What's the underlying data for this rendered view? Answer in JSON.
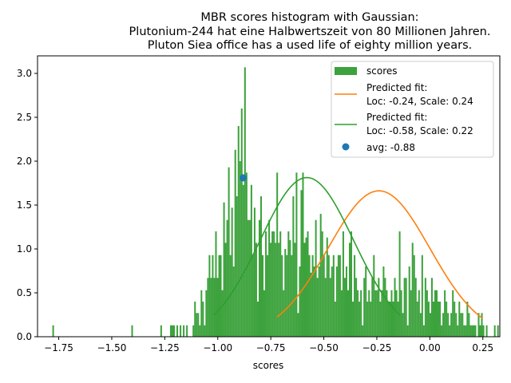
{
  "chart_data": {
    "type": "bar",
    "title_lines": [
      "MBR scores histogram with Gaussian:",
      "Plutonium-244 hat eine Halbwertszeit von 80 Millionen Jahren.",
      "Pluton Siea office has a used life of eighty million years."
    ],
    "xlabel": "scores",
    "ylabel": "",
    "xlim": [
      -1.85,
      0.33
    ],
    "ylim": [
      0,
      3.2
    ],
    "xticks": [
      -1.75,
      -1.5,
      -1.25,
      -1.0,
      -0.75,
      -0.5,
      -0.25,
      0.0,
      0.25
    ],
    "xtick_labels": [
      "−1.75",
      "−1.50",
      "−1.25",
      "−1.00",
      "−0.75",
      "−0.50",
      "−0.25",
      "0.00",
      "0.25"
    ],
    "yticks": [
      0.0,
      0.5,
      1.0,
      1.5,
      2.0,
      2.5,
      3.0
    ],
    "ytick_labels": [
      "0.0",
      "0.5",
      "1.0",
      "1.5",
      "2.0",
      "2.5",
      "3.0"
    ],
    "grid": false,
    "legend_position": "top-right",
    "histogram": {
      "name": "scores",
      "color": "#3ca23c",
      "bin_start": -1.78,
      "bin_width": 0.0076,
      "heights": [
        0.13,
        0,
        0,
        0,
        0,
        0,
        0,
        0,
        0,
        0,
        0,
        0,
        0,
        0,
        0,
        0,
        0,
        0,
        0,
        0,
        0,
        0,
        0,
        0,
        0,
        0,
        0,
        0,
        0,
        0,
        0,
        0,
        0,
        0,
        0,
        0,
        0,
        0,
        0,
        0,
        0,
        0,
        0,
        0,
        0,
        0,
        0,
        0,
        0,
        0.13,
        0,
        0,
        0,
        0,
        0,
        0,
        0,
        0,
        0,
        0,
        0,
        0,
        0,
        0,
        0,
        0,
        0,
        0.13,
        0,
        0,
        0,
        0,
        0,
        0.13,
        0.13,
        0.13,
        0,
        0.13,
        0,
        0.13,
        0,
        0.13,
        0,
        0.13,
        0,
        0,
        0,
        0.13,
        0.4,
        0.27,
        0.27,
        0.13,
        0.53,
        0.4,
        0.13,
        0.53,
        0.67,
        0.93,
        0.67,
        0.93,
        0.67,
        1.2,
        0.67,
        0.93,
        0.93,
        0.53,
        1.53,
        1.07,
        1.33,
        1.93,
        0.93,
        1.47,
        0.8,
        2.13,
        1.6,
        2.4,
        2.0,
        2.6,
        1.73,
        3.07,
        1.87,
        1.33,
        1.33,
        1.73,
        0.93,
        1.47,
        1.07,
        0.4,
        1.33,
        1.6,
        0.93,
        0.53,
        1.2,
        0.93,
        1.33,
        1.07,
        1.2,
        1.2,
        1.07,
        1.87,
        1.07,
        1.2,
        0.93,
        0.53,
        1.0,
        0.93,
        1.2,
        1.1,
        0.93,
        1.6,
        1.07,
        1.87,
        0.27,
        0.8,
        1.67,
        1.87,
        1.07,
        1.13,
        1.2,
        0.93,
        0.73,
        0.93,
        0.8,
        1.33,
        0.67,
        0.8,
        1.4,
        1.2,
        0.93,
        0.67,
        1.13,
        0.93,
        0.67,
        0.8,
        0.93,
        0.4,
        0.8,
        0.93,
        0.93,
        0.53,
        1.2,
        0.67,
        0.8,
        0.53,
        1.07,
        1.2,
        0.4,
        0.93,
        0.67,
        0.53,
        0.4,
        0.53,
        0.13,
        0.67,
        0.8,
        0.4,
        0.53,
        0.4,
        0.67,
        0.93,
        0.53,
        0.53,
        0.67,
        0.4,
        0.53,
        0.8,
        0.67,
        0.53,
        0.4,
        0.4,
        0.53,
        0.4,
        0.67,
        0.53,
        0.4,
        1.2,
        0.53,
        0.27,
        0.67,
        0.67,
        0.13,
        0.8,
        0.53,
        1.07,
        0.93,
        0.67,
        0.4,
        0.53,
        0.27,
        0.93,
        0.13,
        0.67,
        0.53,
        0.4,
        0.27,
        0.67,
        0.4,
        0.53,
        0.53,
        0.4,
        0.4,
        0.13,
        0.27,
        0.53,
        0.4,
        0.27,
        0.13,
        0.27,
        0.53,
        0.4,
        0.27,
        0.13,
        0.4,
        0.27,
        0.27,
        0.13,
        0.13,
        0.4,
        0.27,
        0.13,
        0.13,
        0.13,
        0.13,
        0,
        0.27,
        0.13,
        0.27,
        0.13,
        0,
        0.13,
        0,
        0,
        0,
        0,
        0.13,
        0,
        0.13,
        0,
        0,
        0,
        0,
        0,
        0,
        0,
        0,
        0,
        0,
        0,
        0,
        0,
        0,
        0,
        0.13
      ]
    },
    "series": [
      {
        "name": "Predicted fit:\nLoc: -0.24, Scale: 0.24",
        "kind": "gaussian",
        "loc": -0.24,
        "scale": 0.24,
        "x_range": [
          -0.72,
          0.25
        ],
        "color": "#ff7f0e"
      },
      {
        "name": "Predicted fit:\nLoc: -0.58, Scale: 0.22",
        "kind": "gaussian",
        "loc": -0.58,
        "scale": 0.22,
        "x_range": [
          -1.02,
          -0.14
        ],
        "color": "#2ca02c"
      }
    ],
    "points": [
      {
        "name": "avg: -0.88",
        "x": -0.88,
        "y": 1.81,
        "color": "#1f77b4"
      }
    ],
    "legend": {
      "hist_label": "scores",
      "fit1_line1": "Predicted fit:",
      "fit1_line2": "Loc: -0.24, Scale: 0.24",
      "fit2_line1": "Predicted fit:",
      "fit2_line2": "Loc: -0.58, Scale: 0.22",
      "avg_label": "avg: -0.88"
    }
  }
}
